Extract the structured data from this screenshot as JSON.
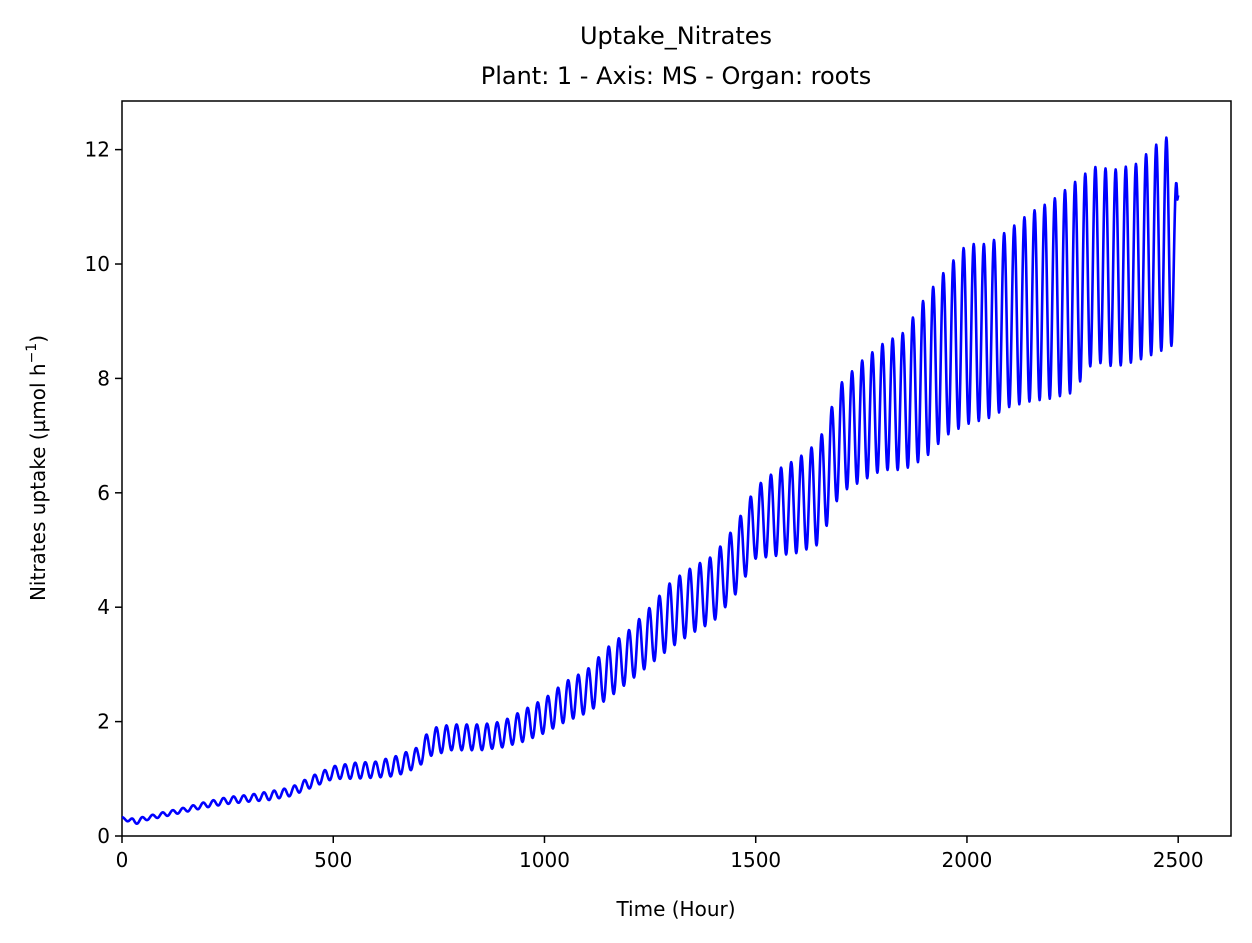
{
  "chart_data": {
    "type": "line",
    "title": "Uptake_Nitrates",
    "subtitle": "Plant: 1 - Axis: MS - Organ: roots",
    "xlabel": "Time (Hour)",
    "ylabel_main": "Nitrates uptake (µmol h",
    "ylabel_sup": "−1",
    "ylabel_end": ")",
    "xlim": [
      0,
      2625
    ],
    "ylim": [
      0,
      12.85
    ],
    "xticks": [
      0,
      500,
      1000,
      1500,
      2000,
      2500
    ],
    "xtick_labels": [
      "0",
      "500",
      "1000",
      "1500",
      "2000",
      "2500"
    ],
    "yticks": [
      0,
      2,
      4,
      6,
      8,
      10,
      12
    ],
    "ytick_labels": [
      "0",
      "2",
      "4",
      "6",
      "8",
      "10",
      "12"
    ],
    "grid": false,
    "line_color": "#0000ff",
    "period_hours": 24,
    "series": [
      {
        "x": [
          0,
          30,
          60,
          100,
          150,
          200,
          250,
          300,
          350,
          400,
          450,
          500,
          550,
          600,
          650,
          700,
          730,
          780,
          850,
          900,
          950,
          1000,
          1050,
          1100,
          1150,
          1200,
          1250,
          1300,
          1350,
          1400,
          1450,
          1500,
          1550,
          1600,
          1650,
          1700,
          1750,
          1800,
          1850,
          1900,
          1950,
          2000,
          2050,
          2100,
          2150,
          2200,
          2250,
          2300,
          2350,
          2400,
          2450,
          2480,
          2500
        ],
        "peaks": [
          0.33,
          0.3,
          0.35,
          0.42,
          0.5,
          0.6,
          0.68,
          0.72,
          0.78,
          0.85,
          1.05,
          1.22,
          1.28,
          1.3,
          1.4,
          1.55,
          1.88,
          1.95,
          1.95,
          2.0,
          2.2,
          2.4,
          2.7,
          2.9,
          3.3,
          3.6,
          4.0,
          4.45,
          4.7,
          4.9,
          5.4,
          6.1,
          6.4,
          6.6,
          6.9,
          7.9,
          8.3,
          8.6,
          8.8,
          9.4,
          9.9,
          10.35,
          10.35,
          10.6,
          10.9,
          11.1,
          11.4,
          11.7,
          11.65,
          11.75,
          12.1,
          12.25,
          11.2
        ],
        "troughs": [
          0.3,
          0.2,
          0.28,
          0.34,
          0.42,
          0.5,
          0.56,
          0.6,
          0.63,
          0.7,
          0.85,
          1.0,
          1.0,
          1.02,
          1.05,
          1.2,
          1.4,
          1.5,
          1.5,
          1.55,
          1.65,
          1.8,
          2.0,
          2.15,
          2.4,
          2.7,
          3.0,
          3.3,
          3.55,
          3.75,
          4.2,
          4.85,
          4.9,
          4.95,
          5.1,
          6.0,
          6.2,
          6.4,
          6.4,
          6.6,
          7.0,
          7.2,
          7.3,
          7.5,
          7.6,
          7.65,
          7.75,
          8.3,
          8.2,
          8.3,
          8.45,
          8.55,
          8.65
        ],
        "end_value": 11.2
      }
    ]
  }
}
